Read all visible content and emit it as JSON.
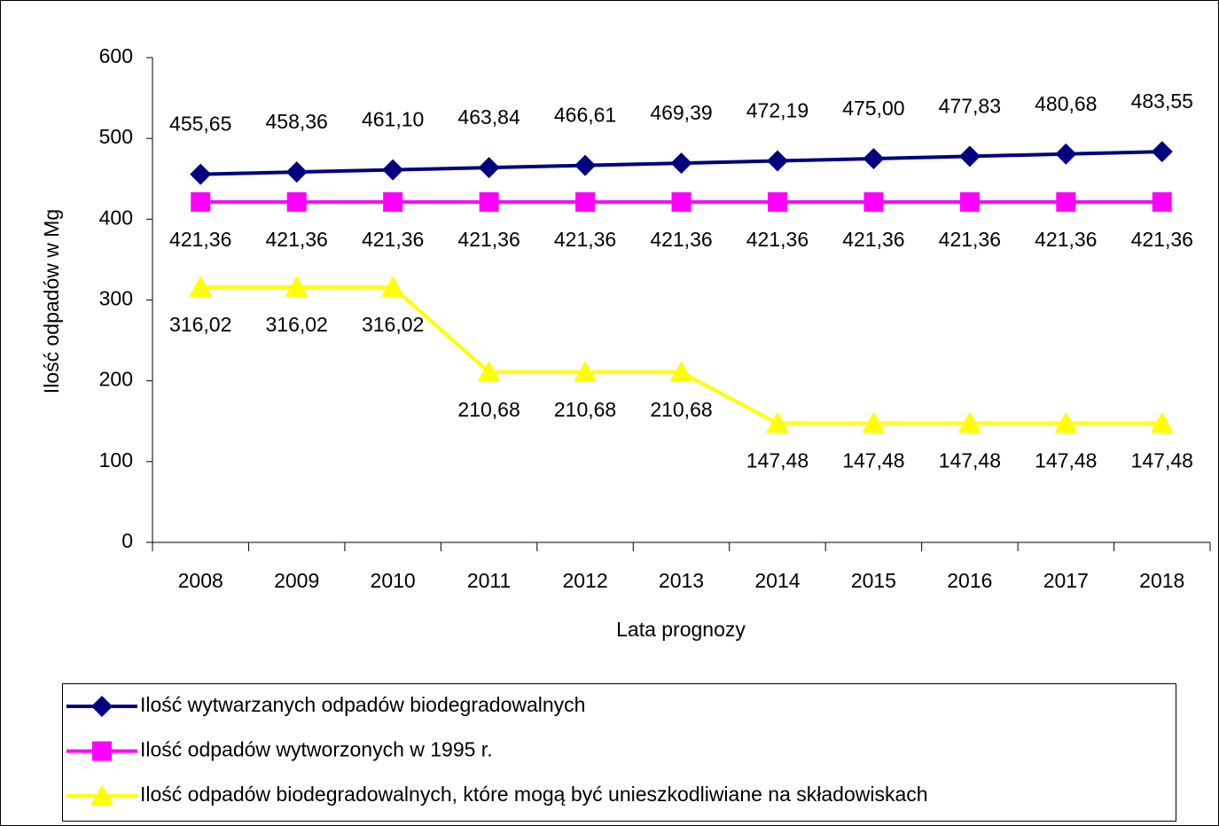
{
  "chart_data": {
    "type": "line",
    "categories": [
      "2008",
      "2009",
      "2010",
      "2011",
      "2012",
      "2013",
      "2014",
      "2015",
      "2016",
      "2017",
      "2018"
    ],
    "series": [
      {
        "name": "Ilość wytwarzanych odpadów biodegradowalnych",
        "color": "#000080",
        "marker": "diamond",
        "label_position": "above",
        "values": [
          455.65,
          458.36,
          461.1,
          463.84,
          466.61,
          469.39,
          472.19,
          475.0,
          477.83,
          480.68,
          483.55
        ],
        "value_labels": [
          "455,65",
          "458,36",
          "461,10",
          "463,84",
          "466,61",
          "469,39",
          "472,19",
          "475,00",
          "477,83",
          "480,68",
          "483,55"
        ]
      },
      {
        "name": "Ilość odpadów wytworzonych w 1995 r.",
        "color": "#ff00ff",
        "marker": "square",
        "label_position": "below",
        "values": [
          421.36,
          421.36,
          421.36,
          421.36,
          421.36,
          421.36,
          421.36,
          421.36,
          421.36,
          421.36,
          421.36
        ],
        "value_labels": [
          "421,36",
          "421,36",
          "421,36",
          "421,36",
          "421,36",
          "421,36",
          "421,36",
          "421,36",
          "421,36",
          "421,36",
          "421,36"
        ]
      },
      {
        "name": "Ilość odpadów biodegradowalnych, które mogą być unieszkodliwiane na składowiskach",
        "color": "#ffff00",
        "marker": "triangle",
        "label_position": "below",
        "values": [
          316.02,
          316.02,
          316.02,
          210.68,
          210.68,
          210.68,
          147.48,
          147.48,
          147.48,
          147.48,
          147.48
        ],
        "value_labels": [
          "316,02",
          "316,02",
          "316,02",
          "210,68",
          "210,68",
          "210,68",
          "147,48",
          "147,48",
          "147,48",
          "147,48",
          "147,48"
        ]
      }
    ],
    "xlabel": "Lata prognozy",
    "ylabel": "Ilość odpadów w Mg",
    "ylim": [
      0,
      600
    ],
    "yticks": [
      0,
      100,
      200,
      300,
      400,
      500,
      600
    ],
    "grid": false,
    "legend": "bottom"
  }
}
